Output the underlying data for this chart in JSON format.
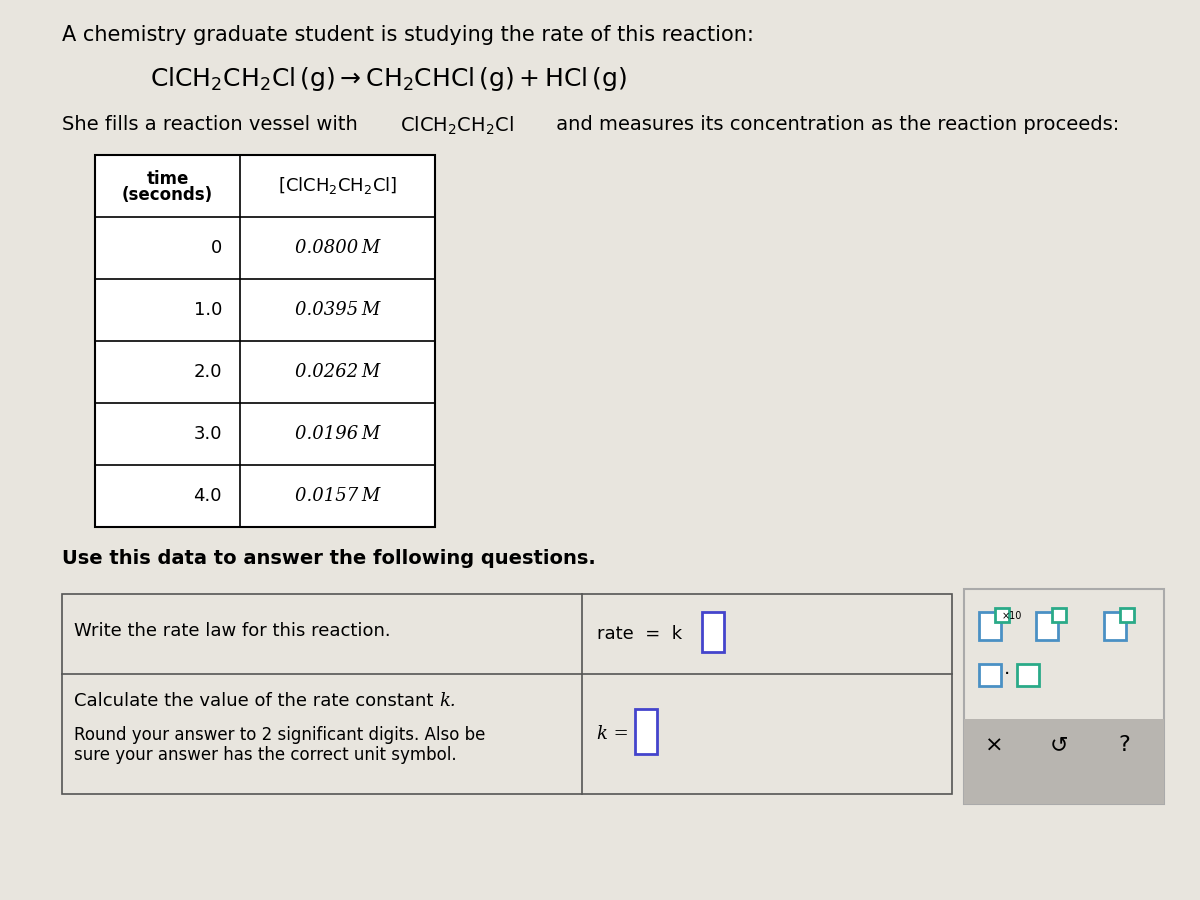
{
  "bg_color": "#cccac5",
  "panel_bg": "#e8e5de",
  "white": "#ffffff",
  "toolbar_gray": "#b8b5b0",
  "blue_border": "#4a90c4",
  "dark_border": "#444444",
  "title": "A chemistry graduate student is studying the rate of this reaction:",
  "vessel_pre": "She fills a reaction vessel with ",
  "vessel_chem": "ClCH₂CH₂Cl",
  "vessel_post": " and measures its concentration as the reaction proceeds:",
  "use_text": "Use this data to answer the following questions.",
  "q1_left": "Write the rate law for this reaction.",
  "q2_line1": "Calculate the value of the rate constant ",
  "q2_k": "k",
  "q2_line2": "Round your answer to 2 significant digits. Also be",
  "q2_line3": "sure your answer has the correct unit symbol.",
  "table_times": [
    "0",
    "1.0",
    "2.0",
    "3.0",
    "4.0"
  ],
  "table_concs": [
    "0.0800 M",
    "0.0395 M",
    "0.0262 M",
    "0.0196 M",
    "0.0157 M"
  ]
}
